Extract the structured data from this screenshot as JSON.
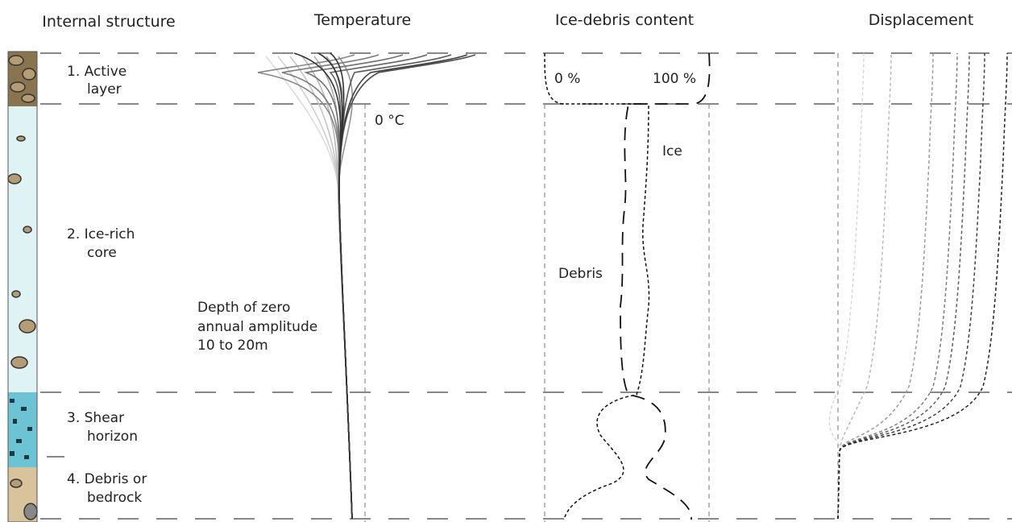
{
  "columns": [
    "Internal structure",
    "Temperature",
    "Ice-debris content",
    "Displacement"
  ],
  "layers": [
    {
      "label": [
        "1. Active",
        "layer"
      ]
    },
    {
      "label": [
        "2. Ice-rich",
        "core"
      ]
    },
    {
      "label": [
        "3. Shear",
        "horizon"
      ]
    },
    {
      "label": [
        "4. Debris or",
        "bedrock"
      ]
    }
  ],
  "temperature": {
    "zero_label": "0 °C",
    "note": [
      "Depth of zero",
      "annual amplitude",
      "10 to 20m"
    ]
  },
  "ice_debris": {
    "min_label": "0 %",
    "max_label": "100 %",
    "ice_label": "Ice",
    "debris_label": "Debris"
  }
}
